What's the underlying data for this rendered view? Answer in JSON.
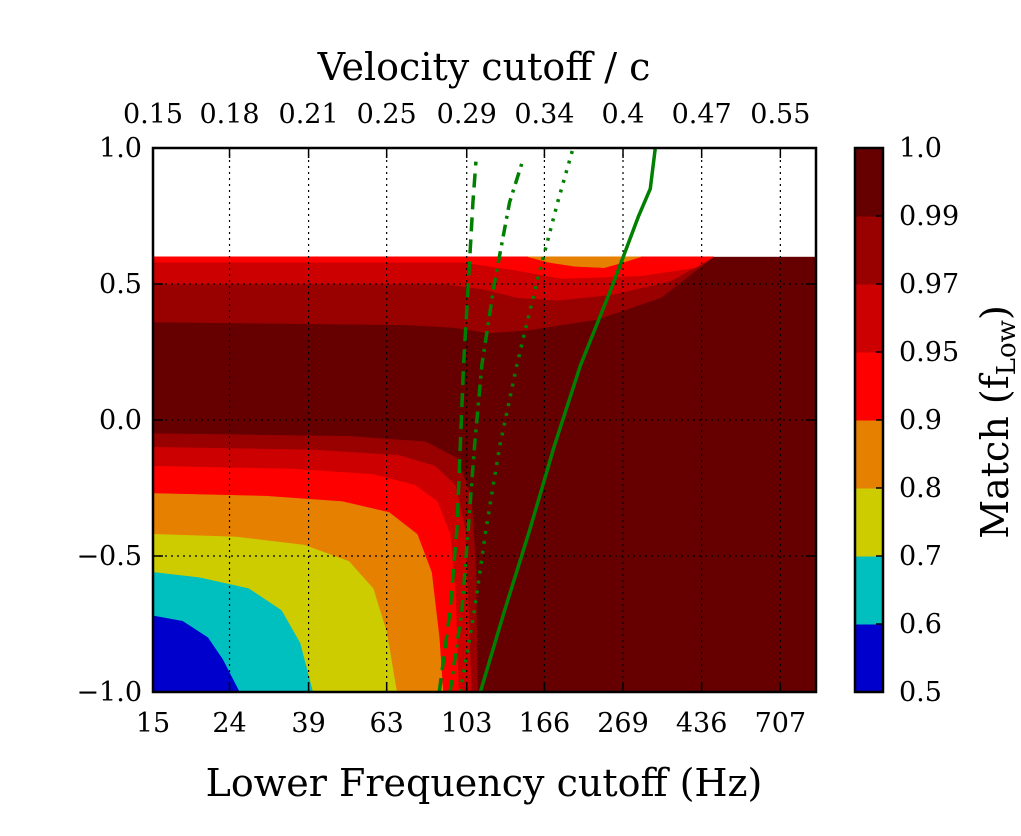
{
  "chart_data": {
    "type": "heatmap",
    "subtype": "filled-contour",
    "title": "",
    "xlabel": "Lower Frequency cutoff (Hz)",
    "x_top_label": "Velocity cutoff / c",
    "ylabel": "",
    "colorbar_label": "Match (f",
    "colorbar_label_sub": "Low",
    "colorbar_label_close": ")",
    "x_scale": "log",
    "xlim": [
      15,
      880
    ],
    "ylim": [
      -1.0,
      1.0
    ],
    "x_ticks": [
      15,
      24,
      39,
      63,
      103,
      166,
      269,
      436,
      707
    ],
    "x_tick_labels": [
      "15",
      "24",
      "39",
      "63",
      "103",
      "166",
      "269",
      "436",
      "707"
    ],
    "x_top_ticks": [
      15,
      24,
      39,
      63,
      103,
      166,
      269,
      436,
      707
    ],
    "x_top_tick_labels": [
      "0.15",
      "0.18",
      "0.21",
      "0.25",
      "0.29",
      "0.34",
      "0.4",
      "0.47",
      "0.55"
    ],
    "y_ticks": [
      -1.0,
      -0.5,
      0.0,
      0.5,
      1.0
    ],
    "y_tick_labels": [
      "−1.0",
      "−0.5",
      "0.0",
      "0.5",
      "1.0"
    ],
    "grid": true,
    "colorbar": {
      "levels": [
        0.5,
        0.6,
        0.7,
        0.8,
        0.9,
        0.95,
        0.97,
        0.99,
        1.0
      ],
      "tick_labels": [
        "0.5",
        "0.6",
        "0.7",
        "0.8",
        "0.9",
        "0.95",
        "0.97",
        "0.99",
        "1.0"
      ],
      "colors": [
        "#0000cd",
        "#00bfbf",
        "#cccc00",
        "#e68000",
        "#ff0000",
        "#cc0000",
        "#990000",
        "#660000"
      ]
    },
    "contour_regions": [
      {
        "name": "match-0.5-0.6",
        "color": "#0000cd",
        "boundary": [
          [
            15,
            -0.72
          ],
          [
            18,
            -0.74
          ],
          [
            21,
            -0.8
          ],
          [
            23,
            -0.88
          ],
          [
            25.5,
            -1.0
          ]
        ]
      },
      {
        "name": "match-0.6-0.7",
        "color": "#00bfbf",
        "boundary": [
          [
            15,
            -0.56
          ],
          [
            20,
            -0.58
          ],
          [
            27,
            -0.62
          ],
          [
            33,
            -0.7
          ],
          [
            37,
            -0.82
          ],
          [
            40,
            -1.0
          ]
        ]
      },
      {
        "name": "match-0.7-0.8",
        "color": "#cccc00",
        "boundary": [
          [
            15,
            -0.42
          ],
          [
            25,
            -0.43
          ],
          [
            38,
            -0.46
          ],
          [
            50,
            -0.52
          ],
          [
            58,
            -0.62
          ],
          [
            63,
            -0.78
          ],
          [
            67,
            -1.0
          ]
        ]
      },
      {
        "name": "match-0.8-0.9",
        "color": "#e68000",
        "boundary": [
          [
            15,
            -0.27
          ],
          [
            30,
            -0.28
          ],
          [
            48,
            -0.3
          ],
          [
            64,
            -0.34
          ],
          [
            76,
            -0.42
          ],
          [
            83,
            -0.56
          ],
          [
            87,
            -0.8
          ],
          [
            89,
            -1.0
          ]
        ]
      },
      {
        "name": "match-0.9-0.95",
        "color": "#ff0000",
        "boundary": [
          [
            15,
            -0.17
          ],
          [
            35,
            -0.18
          ],
          [
            58,
            -0.2
          ],
          [
            75,
            -0.24
          ],
          [
            86,
            -0.3
          ],
          [
            93,
            -0.42
          ],
          [
            96,
            -0.62
          ],
          [
            98,
            -1.0
          ]
        ]
      },
      {
        "name": "match-0.95-0.97",
        "color": "#cc0000",
        "boundary": [
          [
            15,
            -0.1
          ],
          [
            40,
            -0.11
          ],
          [
            68,
            -0.13
          ],
          [
            85,
            -0.17
          ],
          [
            96,
            -0.24
          ],
          [
            102,
            -0.4
          ],
          [
            104,
            -0.68
          ],
          [
            106,
            -1.0
          ]
        ]
      },
      {
        "name": "match-0.97-0.99",
        "color": "#990000",
        "boundary": [
          [
            15,
            -0.05
          ],
          [
            50,
            -0.06
          ],
          [
            80,
            -0.08
          ],
          [
            97,
            -0.14
          ],
          [
            106,
            -0.28
          ],
          [
            109,
            -0.55
          ],
          [
            110,
            -1.0
          ]
        ]
      },
      {
        "name": "match-top-0.9-0.95",
        "color": "#ff0000",
        "boundary": [
          [
            15,
            0.58
          ],
          [
            100,
            0.58
          ],
          [
            140,
            0.55
          ],
          [
            185,
            0.52
          ],
          [
            300,
            0.53
          ],
          [
            420,
            0.56
          ],
          [
            470,
            0.6
          ]
        ]
      },
      {
        "name": "match-top-0.95-0.97",
        "color": "#cc0000",
        "boundary": [
          [
            15,
            0.5
          ],
          [
            90,
            0.5
          ],
          [
            115,
            0.48
          ],
          [
            140,
            0.45
          ],
          [
            180,
            0.44
          ],
          [
            250,
            0.46
          ],
          [
            360,
            0.51
          ],
          [
            470,
            0.6
          ]
        ]
      },
      {
        "name": "match-top-0.97-0.99",
        "color": "#990000",
        "boundary": [
          [
            15,
            0.36
          ],
          [
            70,
            0.35
          ],
          [
            95,
            0.34
          ],
          [
            118,
            0.32
          ],
          [
            150,
            0.33
          ],
          [
            230,
            0.37
          ],
          [
            340,
            0.45
          ],
          [
            470,
            0.6
          ]
        ]
      },
      {
        "name": "match-top-0.8-0.9",
        "color": "#e68000",
        "boundary": [
          [
            150,
            0.6
          ],
          [
            170,
            0.58
          ],
          [
            200,
            0.565
          ],
          [
            240,
            0.56
          ],
          [
            270,
            0.58
          ],
          [
            300,
            0.6
          ]
        ]
      }
    ],
    "background_region": {
      "color": "#660000",
      "x_range": [
        15,
        880
      ],
      "y_range": [
        -1.0,
        0.6
      ]
    },
    "series": [
      {
        "name": "dashed",
        "style": "dashed",
        "color": "#007f00",
        "x": [
          87,
          93,
          97,
          99,
          101,
          104,
          107,
          109
        ],
        "y": [
          -1.0,
          -0.7,
          -0.4,
          -0.1,
          0.2,
          0.5,
          0.8,
          0.95
        ]
      },
      {
        "name": "dash-dot",
        "style": "dashdot",
        "color": "#007f00",
        "x": [
          93,
          100,
          104,
          108,
          113,
          122,
          134,
          145
        ],
        "y": [
          -1.0,
          -0.7,
          -0.4,
          -0.1,
          0.2,
          0.5,
          0.8,
          0.95
        ]
      },
      {
        "name": "dotted",
        "style": "dotted",
        "color": "#007f00",
        "x": [
          99,
          108,
          116,
          126,
          140,
          158,
          180,
          198
        ],
        "y": [
          -1.0,
          -0.7,
          -0.4,
          -0.1,
          0.2,
          0.5,
          0.8,
          1.0
        ]
      },
      {
        "name": "solid",
        "style": "solid",
        "color": "#007f00",
        "x": [
          112,
          130,
          152,
          176,
          207,
          253,
          296,
          318,
          328
        ],
        "y": [
          -1.0,
          -0.7,
          -0.4,
          -0.1,
          0.2,
          0.5,
          0.75,
          0.85,
          1.0
        ]
      }
    ]
  }
}
